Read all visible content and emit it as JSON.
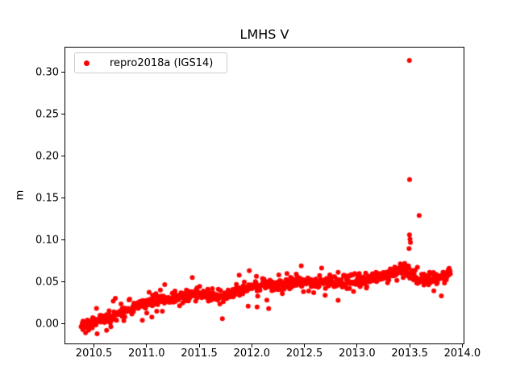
{
  "chart_data": {
    "type": "scatter",
    "title": "LMHS V",
    "xlabel": "",
    "ylabel": "m",
    "xlim": [
      2010.22,
      2014.02
    ],
    "ylim": [
      -0.0245,
      0.3303
    ],
    "xticks": [
      2010.5,
      2011.0,
      2011.5,
      2012.0,
      2012.5,
      2013.0,
      2013.5,
      2014.0
    ],
    "xtick_labels": [
      "2010.5",
      "2011.0",
      "2011.5",
      "2012.0",
      "2012.5",
      "2013.0",
      "2013.5",
      "2014.0"
    ],
    "yticks": [
      0.0,
      0.05,
      0.1,
      0.15,
      0.2,
      0.25,
      0.3
    ],
    "ytick_labels": [
      "0.00",
      "0.05",
      "0.10",
      "0.15",
      "0.20",
      "0.25",
      "0.30"
    ],
    "grid": false,
    "background": "#ffffff",
    "axis_color": "#000000",
    "legend": {
      "position": "upper-left",
      "entries": [
        {
          "label": "repro2018a (IGS14)",
          "marker": "dot",
          "color": "#ff0000"
        }
      ]
    },
    "series": [
      {
        "name": "repro2018a (IGS14)",
        "color": "#ff0000",
        "marker": "point",
        "marker_radius_px": 3,
        "x_start": 2010.38,
        "x_end": 2013.89,
        "n_points": 820,
        "noise_sigma": 0.0036,
        "seed": 7,
        "trend": [
          [
            2010.38,
            -0.003
          ],
          [
            2010.46,
            0.0
          ],
          [
            2010.55,
            0.005
          ],
          [
            2010.7,
            0.011
          ],
          [
            2010.85,
            0.018
          ],
          [
            2011.0,
            0.025
          ],
          [
            2011.15,
            0.029
          ],
          [
            2011.3,
            0.032
          ],
          [
            2011.45,
            0.036
          ],
          [
            2011.57,
            0.035
          ],
          [
            2011.67,
            0.031
          ],
          [
            2011.77,
            0.034
          ],
          [
            2011.87,
            0.039
          ],
          [
            2011.97,
            0.045
          ],
          [
            2012.1,
            0.047
          ],
          [
            2012.22,
            0.044
          ],
          [
            2012.35,
            0.049
          ],
          [
            2012.5,
            0.051
          ],
          [
            2012.65,
            0.049
          ],
          [
            2012.8,
            0.051
          ],
          [
            2012.95,
            0.051
          ],
          [
            2013.1,
            0.054
          ],
          [
            2013.25,
            0.057
          ],
          [
            2013.4,
            0.064
          ],
          [
            2013.47,
            0.067
          ],
          [
            2013.54,
            0.055
          ],
          [
            2013.62,
            0.05
          ],
          [
            2013.72,
            0.053
          ],
          [
            2013.82,
            0.058
          ],
          [
            2013.89,
            0.062
          ]
        ],
        "outliers": [
          [
            2013.497,
            0.314
          ],
          [
            2013.499,
            0.172
          ],
          [
            2013.59,
            0.129
          ],
          [
            2013.498,
            0.106
          ],
          [
            2013.503,
            0.101
          ],
          [
            2013.507,
            0.097
          ],
          [
            2012.47,
            0.069
          ],
          [
            2011.88,
            0.058
          ],
          [
            2011.965,
            0.021
          ],
          [
            2012.05,
            0.02
          ],
          [
            2012.16,
            0.018
          ],
          [
            2011.72,
            0.006
          ],
          [
            2012.82,
            0.028
          ],
          [
            2010.96,
            0.004
          ],
          [
            2011.15,
            0.015
          ],
          [
            2011.05,
            0.008
          ],
          [
            2010.53,
            -0.012
          ],
          [
            2010.62,
            -0.008
          ]
        ]
      }
    ]
  }
}
